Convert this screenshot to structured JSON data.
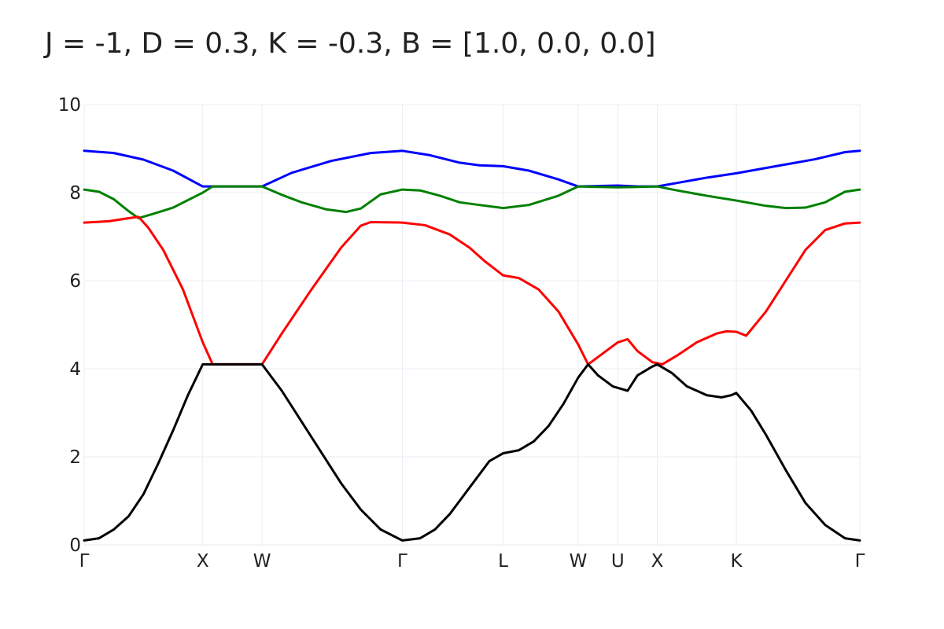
{
  "chart_data": {
    "type": "line",
    "title": "J = -1, D = 0.3, K = -0.3, B = [1.0, 0.0, 0.0]",
    "xlabel": "",
    "ylabel": "",
    "ylim": [
      0,
      10
    ],
    "xlim": [
      0,
      7.85
    ],
    "yticks": [
      0,
      2,
      4,
      6,
      8,
      10
    ],
    "grid": true,
    "legend": "none",
    "x_ticks": [
      {
        "label": "Γ",
        "x": 0.0
      },
      {
        "label": "X",
        "x": 1.2
      },
      {
        "label": "W",
        "x": 1.8
      },
      {
        "label": "Γ",
        "x": 3.22
      },
      {
        "label": "L",
        "x": 4.24
      },
      {
        "label": "W",
        "x": 5.0
      },
      {
        "label": "U",
        "x": 5.4
      },
      {
        "label": "X",
        "x": 5.8
      },
      {
        "label": "K",
        "x": 6.6
      },
      {
        "label": "Γ",
        "x": 7.85
      }
    ],
    "series": [
      {
        "color": "#0000ff",
        "points": [
          [
            0.0,
            8.95
          ],
          [
            0.3,
            8.9
          ],
          [
            0.6,
            8.75
          ],
          [
            0.9,
            8.5
          ],
          [
            1.2,
            8.14
          ],
          [
            1.5,
            8.14
          ],
          [
            1.8,
            8.14
          ],
          [
            2.1,
            8.45
          ],
          [
            2.5,
            8.72
          ],
          [
            2.9,
            8.9
          ],
          [
            3.22,
            8.95
          ],
          [
            3.5,
            8.85
          ],
          [
            3.8,
            8.68
          ],
          [
            4.0,
            8.62
          ],
          [
            4.24,
            8.6
          ],
          [
            4.5,
            8.5
          ],
          [
            4.8,
            8.3
          ],
          [
            5.0,
            8.14
          ],
          [
            5.2,
            8.15
          ],
          [
            5.4,
            8.16
          ],
          [
            5.6,
            8.14
          ],
          [
            5.8,
            8.14
          ],
          [
            6.0,
            8.22
          ],
          [
            6.3,
            8.34
          ],
          [
            6.6,
            8.44
          ],
          [
            7.0,
            8.6
          ],
          [
            7.4,
            8.76
          ],
          [
            7.7,
            8.92
          ],
          [
            7.85,
            8.95
          ]
        ]
      },
      {
        "color": "#008000",
        "points": [
          [
            0.0,
            8.07
          ],
          [
            0.15,
            8.02
          ],
          [
            0.3,
            7.85
          ],
          [
            0.45,
            7.58
          ],
          [
            0.55,
            7.42
          ],
          [
            0.7,
            7.52
          ],
          [
            0.9,
            7.66
          ],
          [
            1.2,
            8.0
          ],
          [
            1.3,
            8.14
          ],
          [
            1.5,
            8.14
          ],
          [
            1.8,
            8.14
          ],
          [
            2.0,
            7.95
          ],
          [
            2.2,
            7.78
          ],
          [
            2.45,
            7.62
          ],
          [
            2.65,
            7.56
          ],
          [
            2.8,
            7.64
          ],
          [
            3.0,
            7.96
          ],
          [
            3.22,
            8.07
          ],
          [
            3.4,
            8.05
          ],
          [
            3.6,
            7.93
          ],
          [
            3.8,
            7.78
          ],
          [
            4.0,
            7.72
          ],
          [
            4.24,
            7.65
          ],
          [
            4.5,
            7.72
          ],
          [
            4.8,
            7.93
          ],
          [
            5.0,
            8.14
          ],
          [
            5.2,
            8.13
          ],
          [
            5.4,
            8.12
          ],
          [
            5.6,
            8.13
          ],
          [
            5.8,
            8.14
          ],
          [
            6.0,
            8.05
          ],
          [
            6.3,
            7.93
          ],
          [
            6.6,
            7.82
          ],
          [
            6.9,
            7.7
          ],
          [
            7.1,
            7.65
          ],
          [
            7.3,
            7.66
          ],
          [
            7.5,
            7.78
          ],
          [
            7.7,
            8.02
          ],
          [
            7.85,
            8.07
          ]
        ]
      },
      {
        "color": "#ff0000",
        "points": [
          [
            0.0,
            7.32
          ],
          [
            0.25,
            7.35
          ],
          [
            0.45,
            7.42
          ],
          [
            0.55,
            7.45
          ],
          [
            0.65,
            7.2
          ],
          [
            0.8,
            6.7
          ],
          [
            1.0,
            5.8
          ],
          [
            1.2,
            4.6
          ],
          [
            1.3,
            4.1
          ],
          [
            1.5,
            4.1
          ],
          [
            1.8,
            4.1
          ],
          [
            2.0,
            4.8
          ],
          [
            2.3,
            5.8
          ],
          [
            2.6,
            6.75
          ],
          [
            2.8,
            7.25
          ],
          [
            2.9,
            7.33
          ],
          [
            3.22,
            7.32
          ],
          [
            3.45,
            7.26
          ],
          [
            3.7,
            7.05
          ],
          [
            3.9,
            6.75
          ],
          [
            4.05,
            6.45
          ],
          [
            4.24,
            6.12
          ],
          [
            4.4,
            6.06
          ],
          [
            4.6,
            5.8
          ],
          [
            4.8,
            5.3
          ],
          [
            5.0,
            4.55
          ],
          [
            5.1,
            4.1
          ],
          [
            5.25,
            4.35
          ],
          [
            5.4,
            4.6
          ],
          [
            5.5,
            4.67
          ],
          [
            5.6,
            4.4
          ],
          [
            5.75,
            4.15
          ],
          [
            5.85,
            4.1
          ],
          [
            6.0,
            4.3
          ],
          [
            6.2,
            4.6
          ],
          [
            6.4,
            4.8
          ],
          [
            6.5,
            4.85
          ],
          [
            6.6,
            4.84
          ],
          [
            6.7,
            4.75
          ],
          [
            6.9,
            5.3
          ],
          [
            7.1,
            6.0
          ],
          [
            7.3,
            6.7
          ],
          [
            7.5,
            7.15
          ],
          [
            7.7,
            7.3
          ],
          [
            7.85,
            7.32
          ]
        ]
      },
      {
        "color": "#000000",
        "points": [
          [
            0.0,
            0.1
          ],
          [
            0.15,
            0.15
          ],
          [
            0.3,
            0.35
          ],
          [
            0.45,
            0.65
          ],
          [
            0.6,
            1.15
          ],
          [
            0.75,
            1.85
          ],
          [
            0.9,
            2.6
          ],
          [
            1.05,
            3.4
          ],
          [
            1.2,
            4.1
          ],
          [
            1.5,
            4.1
          ],
          [
            1.8,
            4.1
          ],
          [
            2.0,
            3.5
          ],
          [
            2.2,
            2.8
          ],
          [
            2.4,
            2.1
          ],
          [
            2.6,
            1.4
          ],
          [
            2.8,
            0.8
          ],
          [
            3.0,
            0.35
          ],
          [
            3.22,
            0.1
          ],
          [
            3.4,
            0.15
          ],
          [
            3.55,
            0.35
          ],
          [
            3.7,
            0.7
          ],
          [
            3.9,
            1.3
          ],
          [
            4.1,
            1.9
          ],
          [
            4.24,
            2.08
          ],
          [
            4.4,
            2.15
          ],
          [
            4.55,
            2.35
          ],
          [
            4.7,
            2.7
          ],
          [
            4.85,
            3.2
          ],
          [
            5.0,
            3.8
          ],
          [
            5.1,
            4.1
          ],
          [
            5.2,
            3.85
          ],
          [
            5.35,
            3.6
          ],
          [
            5.5,
            3.5
          ],
          [
            5.6,
            3.85
          ],
          [
            5.75,
            4.05
          ],
          [
            5.8,
            4.1
          ],
          [
            5.95,
            3.9
          ],
          [
            6.1,
            3.6
          ],
          [
            6.3,
            3.4
          ],
          [
            6.45,
            3.35
          ],
          [
            6.55,
            3.4
          ],
          [
            6.6,
            3.45
          ],
          [
            6.75,
            3.05
          ],
          [
            6.9,
            2.5
          ],
          [
            7.1,
            1.7
          ],
          [
            7.3,
            0.95
          ],
          [
            7.5,
            0.45
          ],
          [
            7.7,
            0.15
          ],
          [
            7.85,
            0.1
          ]
        ]
      }
    ]
  }
}
